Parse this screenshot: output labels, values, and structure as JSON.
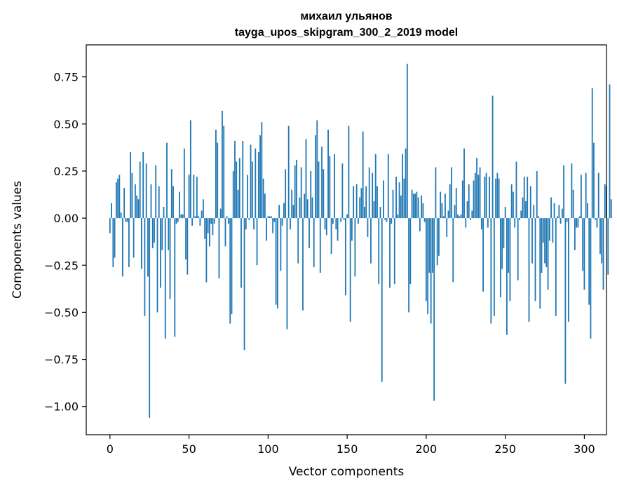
{
  "chart_data": {
    "type": "bar",
    "title": "михаил ульянов",
    "subtitle": "tayga_upos_skipgram_300_2_2019 model",
    "xlabel": "Vector components",
    "ylabel": "Components values",
    "xlim": [
      -15,
      314
    ],
    "ylim": [
      -1.15,
      0.92
    ],
    "xticks": [
      0,
      50,
      100,
      150,
      200,
      250,
      300
    ],
    "yticks": [
      -1.0,
      -0.75,
      -0.5,
      -0.25,
      0.0,
      0.25,
      0.5,
      0.75
    ],
    "ytick_labels": [
      "−1.00",
      "−0.75",
      "−0.50",
      "−0.25",
      "0.00",
      "0.25",
      "0.50",
      "0.75"
    ],
    "xtick_labels": [
      "0",
      "50",
      "100",
      "150",
      "200",
      "250",
      "300"
    ],
    "bar_color": "#1f77b4",
    "grid": false,
    "values": [
      -0.08,
      0.08,
      -0.26,
      -0.21,
      0.19,
      0.21,
      0.23,
      0.03,
      -0.31,
      0.16,
      -0.02,
      -0.02,
      -0.26,
      0.35,
      0.24,
      -0.21,
      0.18,
      0.12,
      0.1,
      0.3,
      -0.27,
      0.35,
      -0.52,
      0.29,
      -0.31,
      -1.06,
      0.18,
      -0.16,
      -0.13,
      0.28,
      -0.5,
      0.17,
      -0.37,
      -0.17,
      0.06,
      -0.64,
      0.4,
      -0.17,
      -0.43,
      0.26,
      0.17,
      -0.63,
      -0.03,
      -0.02,
      0.14,
      0.02,
      0.02,
      0.37,
      -0.22,
      -0.3,
      0.23,
      0.52,
      -0.04,
      0.23,
      0.01,
      0.22,
      0.01,
      -0.04,
      0.04,
      0.1,
      -0.11,
      -0.34,
      -0.08,
      -0.15,
      -0.03,
      -0.09,
      -0.03,
      0.47,
      0.4,
      -0.32,
      0.05,
      0.57,
      0.49,
      -0.15,
      0.01,
      -0.03,
      -0.56,
      -0.51,
      0.25,
      0.41,
      0.3,
      0.15,
      0.32,
      -0.37,
      0.41,
      -0.7,
      -0.06,
      0.23,
      -0.01,
      0.39,
      0.3,
      -0.06,
      0.37,
      -0.25,
      0.35,
      0.44,
      0.51,
      0.21,
      0.13,
      -0.12,
      0.01,
      0.01,
      0.01,
      -0.08,
      -0.02,
      -0.46,
      -0.48,
      0.07,
      -0.28,
      -0.04,
      0.08,
      0.26,
      -0.59,
      0.49,
      -0.06,
      0.15,
      0.07,
      0.28,
      0.31,
      -0.24,
      0.11,
      0.27,
      -0.49,
      0.13,
      0.42,
      0.1,
      -0.16,
      0.25,
      0.11,
      -0.26,
      0.44,
      0.52,
      0.3,
      -0.29,
      0.38,
      0.26,
      -0.06,
      -0.09,
      0.47,
      0.33,
      -0.19,
      -0.03,
      0.34,
      -0.06,
      -0.12,
      0.0,
      -0.02,
      0.29,
      -0.01,
      -0.41,
      0.02,
      0.49,
      -0.55,
      -0.12,
      0.17,
      -0.31,
      0.18,
      -0.03,
      0.11,
      0.16,
      0.46,
      0.06,
      0.17,
      -0.1,
      0.27,
      -0.24,
      0.24,
      0.09,
      0.34,
      0.17,
      -0.35,
      0.06,
      -0.87,
      0.2,
      -0.01,
      -0.02,
      0.34,
      -0.37,
      -0.03,
      0.15,
      -0.35,
      0.22,
      0.02,
      0.19,
      0.12,
      0.34,
      0.21,
      0.37,
      0.82,
      -0.5,
      -0.35,
      0.15,
      0.13,
      0.13,
      0.14,
      0.11,
      -0.07,
      0.12,
      0.08,
      -0.02,
      -0.44,
      -0.51,
      -0.29,
      -0.56,
      -0.29,
      -0.97,
      0.27,
      -0.25,
      -0.2,
      0.14,
      0.08,
      0.01,
      0.13,
      -0.1,
      0.04,
      0.18,
      0.27,
      -0.34,
      0.07,
      0.16,
      0.02,
      0.01,
      0.02,
      0.2,
      0.37,
      -0.05,
      0.09,
      0.18,
      -0.01,
      0.04,
      0.2,
      0.24,
      0.32,
      0.23,
      0.27,
      -0.06,
      -0.39,
      0.22,
      0.24,
      -0.05,
      0.22,
      -0.56,
      0.65,
      -0.52,
      0.21,
      0.24,
      0.21,
      -0.42,
      -0.27,
      -0.16,
      0.06,
      -0.62,
      -0.29,
      -0.44,
      0.18,
      0.14,
      -0.05,
      0.3,
      -0.33,
      -0.01,
      0.04,
      0.11,
      0.22,
      0.09,
      0.22,
      -0.55,
      0.17,
      -0.24,
      0.07,
      -0.44,
      0.25,
      0.01,
      -0.48,
      -0.29,
      -0.13,
      -0.24,
      -0.26,
      -0.38,
      -0.12,
      0.11,
      -0.13,
      0.08,
      -0.52,
      0.01,
      0.07,
      -0.03,
      0.05,
      0.28,
      -0.88,
      -0.02,
      -0.55,
      0.0,
      0.29,
      0.15,
      -0.17,
      -0.05,
      -0.05,
      0.01,
      0.23,
      -0.28,
      -0.38,
      0.24,
      0.08,
      -0.46,
      -0.64,
      0.69,
      0.4,
      -0.01,
      -0.05,
      0.24,
      -0.19,
      -0.24,
      -0.38,
      0.18,
      0.17,
      -0.3,
      0.71,
      0.1
    ]
  }
}
